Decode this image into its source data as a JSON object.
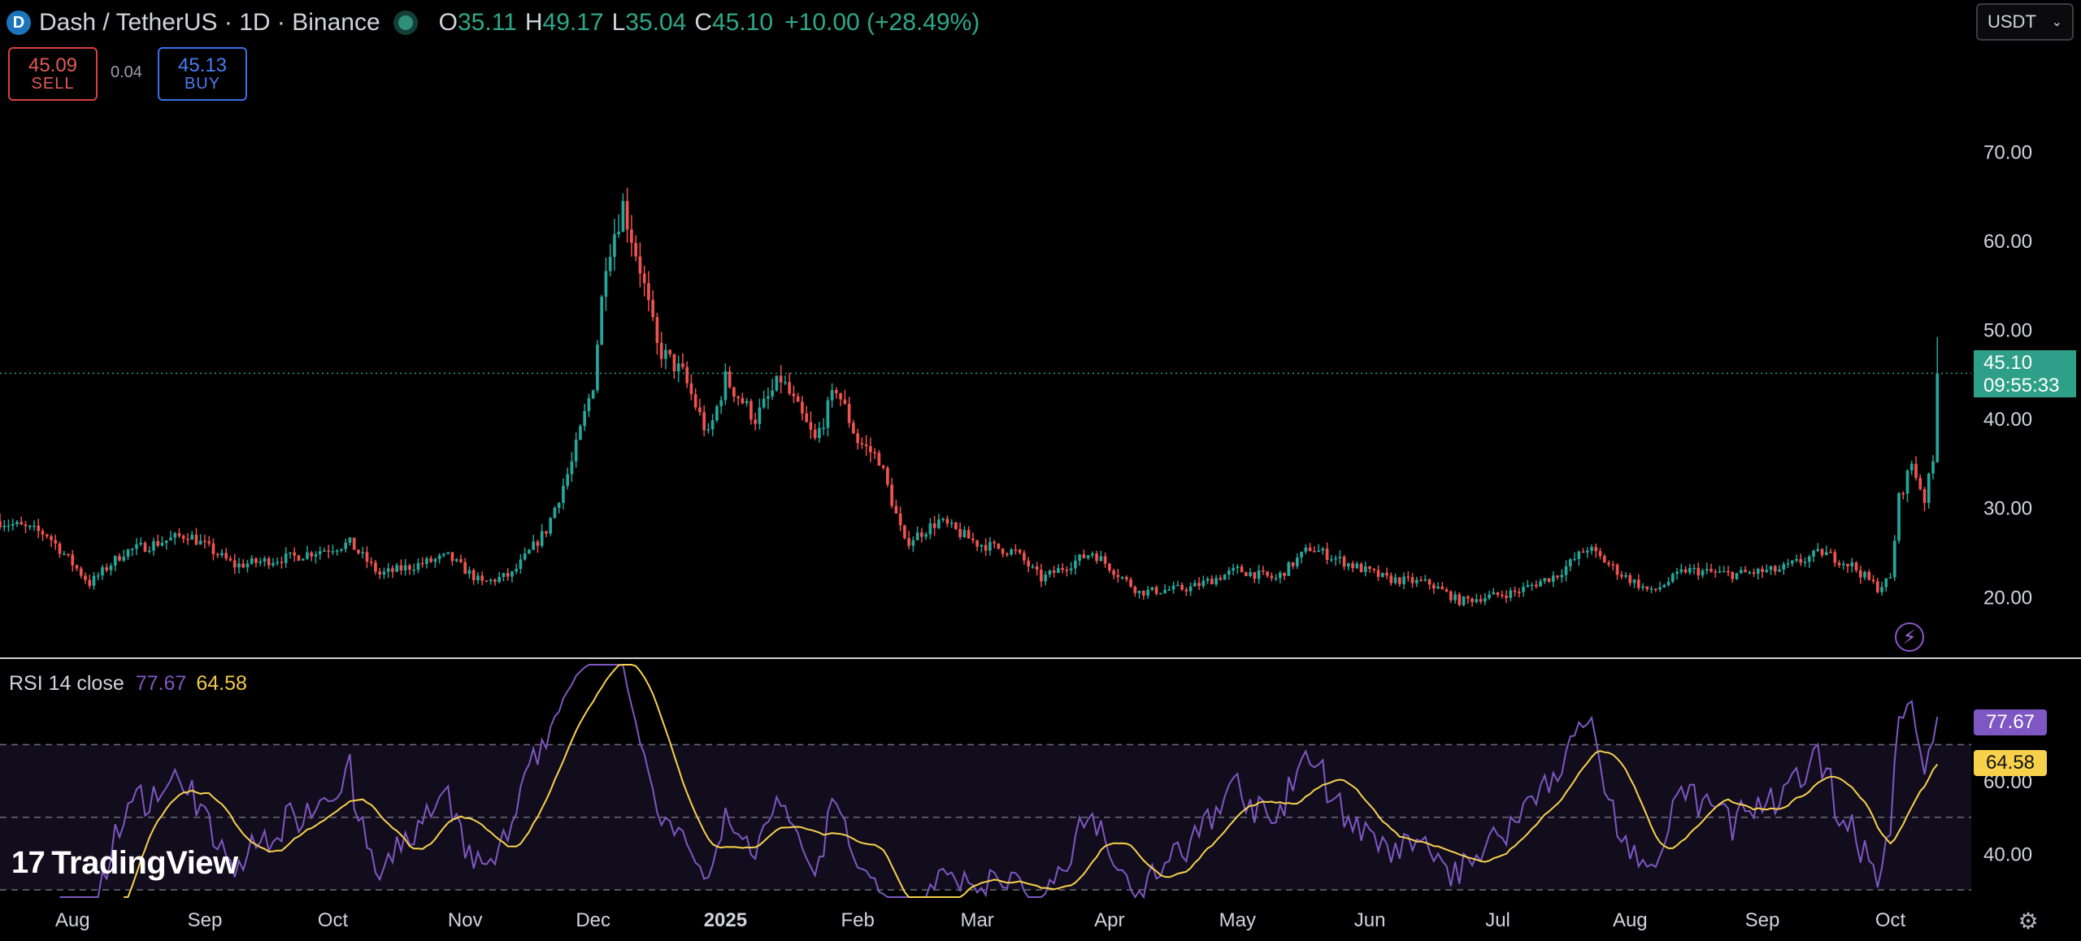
{
  "header": {
    "coin_icon": "dash-coin-icon",
    "title": "Dash / TetherUS · 1D · Binance",
    "o_label": "O",
    "o_value": "35.11",
    "h_label": "H",
    "h_value": "49.17",
    "l_label": "L",
    "l_value": "35.04",
    "c_label": "C",
    "c_value": "45.10",
    "change": "+10.00 (+28.49%)"
  },
  "trade": {
    "sell_price": "45.09",
    "sell_label": "SELL",
    "spread": "0.04",
    "buy_price": "45.13",
    "buy_label": "BUY"
  },
  "currency_select": {
    "value": "USDT"
  },
  "last_price": {
    "price": "45.10",
    "countdown": "09:55:33"
  },
  "rsi": {
    "label": "RSI 14 close",
    "rsi_value": "77.67",
    "ma_value": "64.58"
  },
  "branding": {
    "logo_mark": "17",
    "logo_text": "TradingView"
  },
  "icons": {
    "bolt": "lightning-bolt-icon",
    "settings": "gear-icon"
  },
  "colors": {
    "up": "#26a69a",
    "down": "#ef5350",
    "rsi_line": "#7e57c2",
    "rsi_ma": "#f7d14c",
    "price_tag": "#2e9f88",
    "background": "#000000"
  },
  "chart_data": [
    {
      "type": "candlestick",
      "title": "Dash / TetherUS · 1D · Binance",
      "ylim": [
        14,
        79
      ],
      "y_ticks": [
        "20.00",
        "30.00",
        "40.00",
        "50.00",
        "60.00",
        "70.00"
      ],
      "x_ticks": [
        "Aug",
        "Sep",
        "Oct",
        "Nov",
        "Dec",
        "2025",
        "Feb",
        "Mar",
        "Apr",
        "May",
        "Jun",
        "Jul",
        "Aug",
        "Sep",
        "Oct"
      ],
      "x_tick_dates": [
        "2024-08-01",
        "2024-09-01",
        "2024-10-01",
        "2024-11-01",
        "2024-12-01",
        "2025-01-01",
        "2025-02-01",
        "2025-03-01",
        "2025-04-01",
        "2025-05-01",
        "2025-06-01",
        "2025-07-01",
        "2025-08-01",
        "2025-09-01",
        "2025-10-01"
      ],
      "x_range": [
        "2024-07-15",
        "2025-10-19"
      ],
      "close_path": [
        [
          "2024-07-15",
          28.5
        ],
        [
          "2024-07-26",
          27.0
        ],
        [
          "2024-08-05",
          21.5
        ],
        [
          "2024-08-13",
          25.0
        ],
        [
          "2024-08-28",
          27.0
        ],
        [
          "2024-09-08",
          23.5
        ],
        [
          "2024-09-22",
          24.5
        ],
        [
          "2024-10-05",
          26.0
        ],
        [
          "2024-10-12",
          22.5
        ],
        [
          "2024-10-28",
          24.5
        ],
        [
          "2024-11-05",
          21.5
        ],
        [
          "2024-11-12",
          22.5
        ],
        [
          "2024-11-20",
          27.5
        ],
        [
          "2024-11-26",
          35.0
        ],
        [
          "2024-12-01",
          44.0
        ],
        [
          "2024-12-04",
          58.0
        ],
        [
          "2024-12-08",
          64.0
        ],
        [
          "2024-12-12",
          57.0
        ],
        [
          "2024-12-16",
          48.0
        ],
        [
          "2024-12-22",
          45.0
        ],
        [
          "2024-12-28",
          38.0
        ],
        [
          "2025-01-01",
          44.5
        ],
        [
          "2025-01-08",
          40.0
        ],
        [
          "2025-01-14",
          44.5
        ],
        [
          "2025-01-22",
          37.5
        ],
        [
          "2025-01-27",
          43.5
        ],
        [
          "2025-02-01",
          37.5
        ],
        [
          "2025-02-06",
          35.5
        ],
        [
          "2025-02-12",
          26.0
        ],
        [
          "2025-02-20",
          28.5
        ],
        [
          "2025-03-01",
          26.0
        ],
        [
          "2025-03-10",
          25.0
        ],
        [
          "2025-03-16",
          22.0
        ],
        [
          "2025-03-28",
          25.0
        ],
        [
          "2025-04-08",
          20.5
        ],
        [
          "2025-04-20",
          21.0
        ],
        [
          "2025-05-01",
          23.0
        ],
        [
          "2025-05-10",
          22.0
        ],
        [
          "2025-05-18",
          25.5
        ],
        [
          "2025-05-28",
          23.5
        ],
        [
          "2025-06-05",
          22.0
        ],
        [
          "2025-06-15",
          21.5
        ],
        [
          "2025-06-22",
          19.5
        ],
        [
          "2025-07-05",
          20.5
        ],
        [
          "2025-07-15",
          22.5
        ],
        [
          "2025-07-22",
          25.5
        ],
        [
          "2025-07-30",
          22.5
        ],
        [
          "2025-08-06",
          20.5
        ],
        [
          "2025-08-14",
          23.0
        ],
        [
          "2025-08-25",
          22.5
        ],
        [
          "2025-09-05",
          23.0
        ],
        [
          "2025-09-15",
          25.0
        ],
        [
          "2025-09-22",
          23.5
        ],
        [
          "2025-09-28",
          21.0
        ],
        [
          "2025-10-01",
          22.0
        ],
        [
          "2025-10-03",
          31.0
        ],
        [
          "2025-10-06",
          35.0
        ],
        [
          "2025-10-09",
          31.0
        ],
        [
          "2025-10-11",
          35.1
        ],
        [
          "2025-10-12",
          45.1
        ]
      ],
      "last_candle": {
        "open": 35.11,
        "high": 49.17,
        "low": 35.04,
        "close": 45.1
      },
      "last_price_line": 45.1
    },
    {
      "type": "line",
      "title": "RSI 14 close",
      "ylim": [
        28,
        92
      ],
      "y_ticks": [
        "40.00",
        "60.00"
      ],
      "bands": [
        30,
        50,
        70
      ],
      "series": [
        {
          "name": "RSI 14 close",
          "color": "#7e57c2",
          "last": 77.67
        },
        {
          "name": "",
          "color": "#f7d14c",
          "last": 64.58
        }
      ]
    }
  ]
}
